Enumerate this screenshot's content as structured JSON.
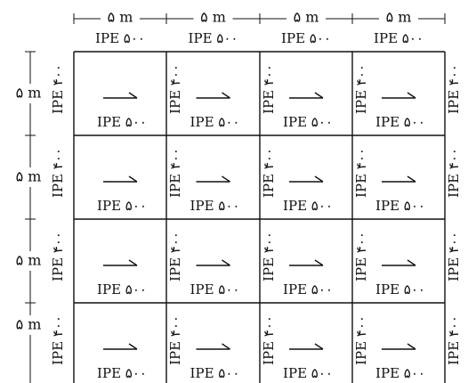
{
  "diagram": {
    "bays_x": 4,
    "bays_y": 4,
    "bay_dim_x": "۵ m",
    "bay_dim_y": "۵ m",
    "beam_label": "IPE ۵۰۰",
    "column_label": "IPE ۴۰۰",
    "load_direction_symbol": "⇀",
    "line_color": "#111111"
  }
}
